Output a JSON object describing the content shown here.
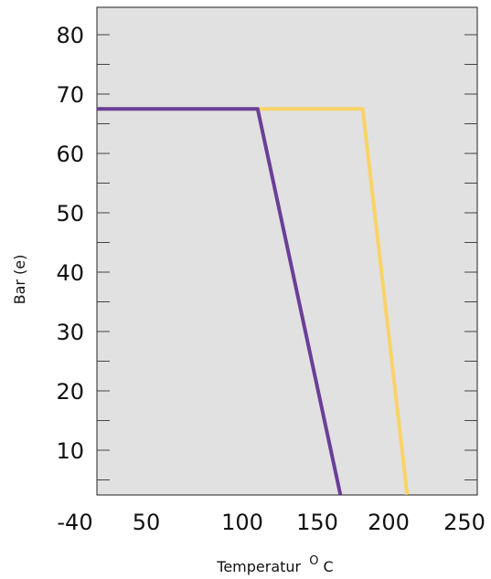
{
  "chart_data": {
    "type": "line",
    "title": "",
    "xlabel": "Temperatur",
    "xlabel_unit_sup": "O",
    "xlabel_unit": "C",
    "ylabel": "Bar (e)",
    "x_tick_labels": [
      "-40",
      "50",
      "100",
      "150",
      "200",
      "250"
    ],
    "x_tick_values": [
      -40,
      50,
      100,
      150,
      200,
      250
    ],
    "xlim": [
      -40,
      250
    ],
    "y_tick_labels": [
      "10",
      "20",
      "30",
      "40",
      "50",
      "60",
      "70",
      "80"
    ],
    "y_tick_values": [
      10,
      20,
      30,
      40,
      50,
      60,
      70,
      80
    ],
    "ylim": [
      2.5,
      85
    ],
    "grid": false,
    "background": "#e1e1e1",
    "series": [
      {
        "color": "#6b3f97",
        "x": [
          -40,
          120,
          172
        ],
        "y": [
          67.5,
          67.5,
          2.5
        ]
      },
      {
        "color": "#f9d367",
        "x": [
          120,
          186,
          214
        ],
        "y": [
          67.5,
          67.5,
          2.5
        ]
      }
    ]
  }
}
